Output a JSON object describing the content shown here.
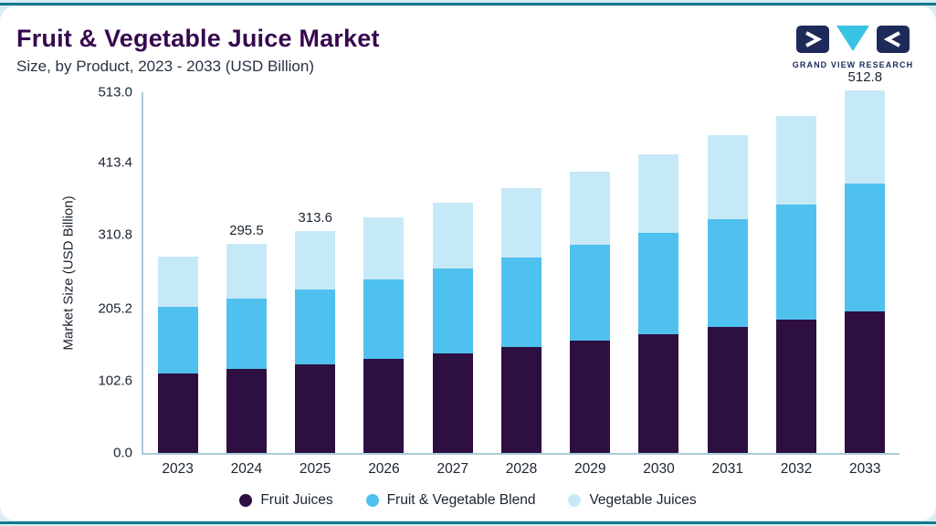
{
  "header": {
    "title": "Fruit & Vegetable Juice Market",
    "subtitle": "Size, by Product, 2023 - 2033 (USD Billion)",
    "logo_text": "GRAND VIEW RESEARCH"
  },
  "chart_data": {
    "type": "bar",
    "stacked": true,
    "title": "Fruit & Vegetable Juice Market Size, by Product, 2023 - 2033 (USD Billion)",
    "xlabel": "",
    "ylabel": "Market Size (USD Billion)",
    "ylim": [
      0,
      513
    ],
    "grid": false,
    "legend_position": "bottom",
    "yticks": [
      "0.0",
      "102.6",
      "205.2",
      "310.8",
      "413.4",
      "513.0"
    ],
    "ytick_values": [
      0,
      102.6,
      205.2,
      310.8,
      413.4,
      513
    ],
    "categories": [
      "2023",
      "2024",
      "2025",
      "2026",
      "2027",
      "2028",
      "2029",
      "2030",
      "2031",
      "2032",
      "2033"
    ],
    "series": [
      {
        "name": "Fruit Juices",
        "color": "#2e0f41",
        "values": [
          112.0,
          118.5,
          125.5,
          133.0,
          141.0,
          149.5,
          158.5,
          168.0,
          178.0,
          189.0,
          200.5
        ]
      },
      {
        "name": "Fruit & Vegetable Blend",
        "color": "#4fc1ee",
        "values": [
          94.5,
          100.5,
          106.5,
          113.0,
          120.0,
          127.5,
          135.5,
          144.0,
          153.0,
          162.5,
          181.0
        ]
      },
      {
        "name": "Vegetable Juices",
        "color": "#c6e9f8",
        "values": [
          71.9,
          76.5,
          81.6,
          87.0,
          92.5,
          98.3,
          104.4,
          111.0,
          118.1,
          125.3,
          131.3
        ]
      }
    ],
    "totals": [
      278.4,
      295.5,
      313.6,
      333.0,
      353.5,
      375.3,
      398.4,
      423.0,
      449.1,
      476.8,
      512.8
    ],
    "bar_total_labels": [
      "",
      "295.5",
      "313.6",
      "",
      "",
      "",
      "",
      "",
      "",
      "",
      "512.8"
    ]
  },
  "colors": {
    "page_bg": "#d8ecf5",
    "accent_line": "#15788d",
    "card_bg": "#ffffff",
    "title": "#36084e",
    "subtitle": "#2a3342",
    "text": "#1b2430",
    "axis": "#a9cadb",
    "logo_navy": "#1d2a5a",
    "logo_cyan": "#38c3e2"
  }
}
